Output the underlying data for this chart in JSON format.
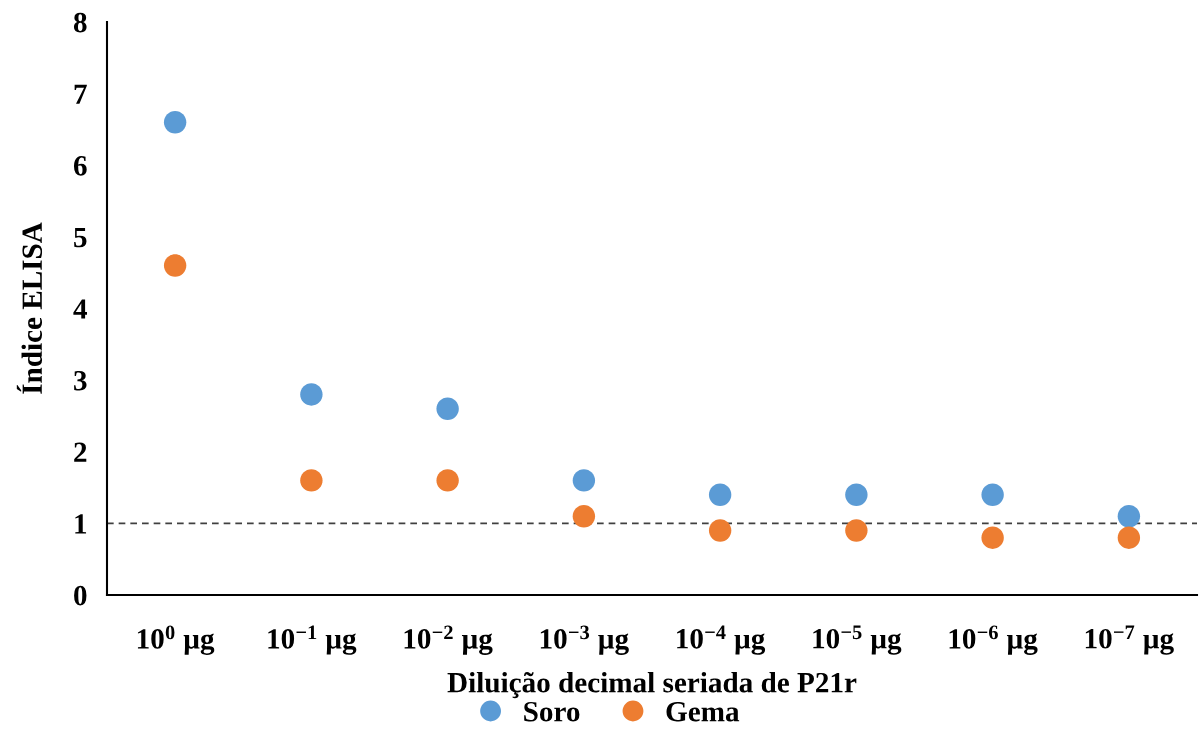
{
  "chart_data": {
    "type": "scatter",
    "xlabel": "Diluição decimal seriada de P21r",
    "ylabel": "Índice ELISA",
    "categories": [
      "10$^{0}$ µg",
      "10$^{−1}$ µg",
      "10$^{−2}$ µg",
      "10$^{−3}$ µg",
      "10$^{−4}$ µg",
      "10$^{−5}$ µg",
      "10$^{−6}$ µg",
      "10$^{−7}$ µg"
    ],
    "series": [
      {
        "name": "Soro",
        "color": "#5b9bd5",
        "values": [
          6.6,
          2.8,
          2.6,
          1.6,
          1.4,
          1.4,
          1.4,
          1.1
        ]
      },
      {
        "name": "Gema",
        "color": "#ed7d31",
        "values": [
          4.6,
          1.6,
          1.6,
          1.1,
          0.9,
          0.9,
          0.8,
          0.8
        ]
      }
    ],
    "ylim": [
      0,
      8
    ],
    "yticks": [
      0,
      1,
      2,
      3,
      4,
      5,
      6,
      7,
      8
    ],
    "ref_lines": [
      {
        "axis": "y",
        "value": 1.0,
        "label": null,
        "color": "#404040",
        "line_style": "dashed"
      }
    ],
    "grid": false,
    "legend": "bottom",
    "marker": "circle"
  }
}
